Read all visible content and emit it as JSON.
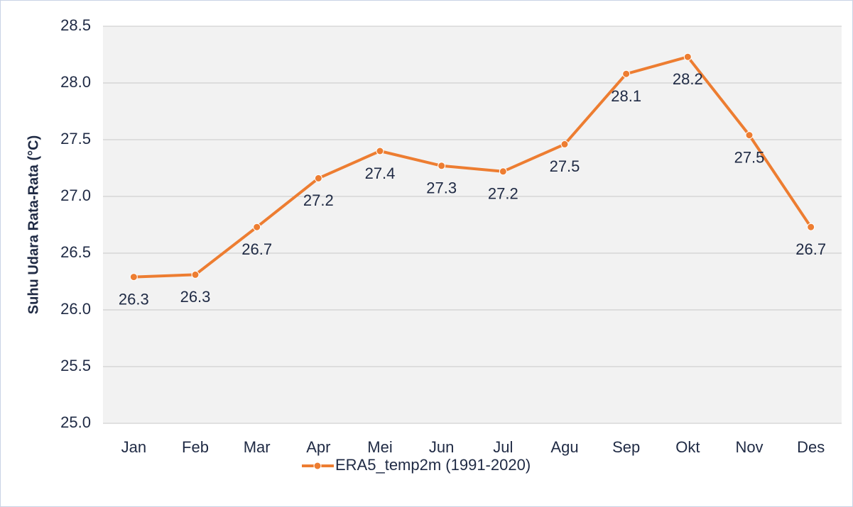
{
  "chart_data": {
    "type": "line",
    "y_label": "Suhu Udara Rata-Rata (°C)",
    "categories": [
      "Jan",
      "Feb",
      "Mar",
      "Apr",
      "Mei",
      "Jun",
      "Jul",
      "Agu",
      "Sep",
      "Okt",
      "Nov",
      "Des"
    ],
    "series": [
      {
        "name": "ERA5_temp2m (1991-2020)",
        "color": "#ed7d31",
        "values": [
          26.29,
          26.31,
          26.73,
          27.16,
          27.4,
          27.27,
          27.22,
          27.46,
          28.08,
          28.23,
          27.54,
          26.73
        ],
        "value_labels": [
          "26.3",
          "26.3",
          "26.7",
          "27.2",
          "27.4",
          "27.3",
          "27.2",
          "27.5",
          "28.1",
          "28.2",
          "27.5",
          "26.7"
        ]
      }
    ],
    "ylim": [
      25.0,
      28.5
    ],
    "yticks": [
      {
        "value": 25.0,
        "label": "25.0"
      },
      25.5,
      {
        "value": 26.0,
        "label": "26.0"
      },
      26.5,
      {
        "value": 27.0,
        "label": "27.0"
      },
      27.5,
      {
        "value": 28.0,
        "label": "28.0"
      },
      28.5
    ],
    "grid": true,
    "legend": "bottom"
  }
}
